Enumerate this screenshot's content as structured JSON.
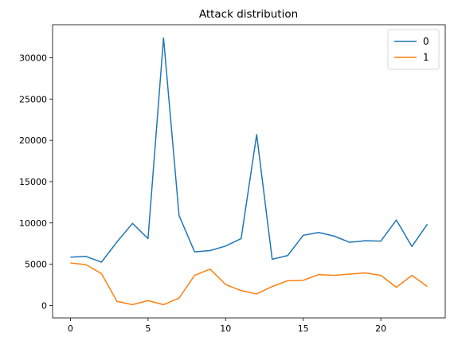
{
  "chart_data": {
    "type": "line",
    "title": "Attack distribution",
    "xlabel": "",
    "ylabel": "",
    "x": [
      0,
      1,
      2,
      3,
      4,
      5,
      6,
      7,
      8,
      9,
      10,
      11,
      12,
      13,
      14,
      15,
      16,
      17,
      18,
      19,
      20,
      21,
      22,
      23
    ],
    "series": [
      {
        "name": "0",
        "color": "#1f77b4",
        "values": [
          5850,
          5950,
          5250,
          7700,
          9950,
          8100,
          32400,
          10900,
          6500,
          6650,
          7200,
          8100,
          20700,
          5600,
          6050,
          8500,
          8850,
          8400,
          7650,
          7850,
          7800,
          10350,
          7150,
          9850
        ]
      },
      {
        "name": "1",
        "color": "#ff7f0e",
        "values": [
          5150,
          4950,
          3850,
          500,
          100,
          600,
          100,
          900,
          3650,
          4400,
          2550,
          1800,
          1400,
          2300,
          3000,
          3050,
          3750,
          3650,
          3800,
          3950,
          3650,
          2200,
          3650,
          2300
        ]
      }
    ],
    "xlim": [
      -1.15,
      24.15
    ],
    "ylim": [
      -1500,
      34000
    ],
    "xticks": [
      0,
      5,
      10,
      15,
      20
    ],
    "yticks": [
      0,
      5000,
      10000,
      15000,
      20000,
      25000,
      30000
    ],
    "grid": false,
    "legend_position": "top-right"
  }
}
